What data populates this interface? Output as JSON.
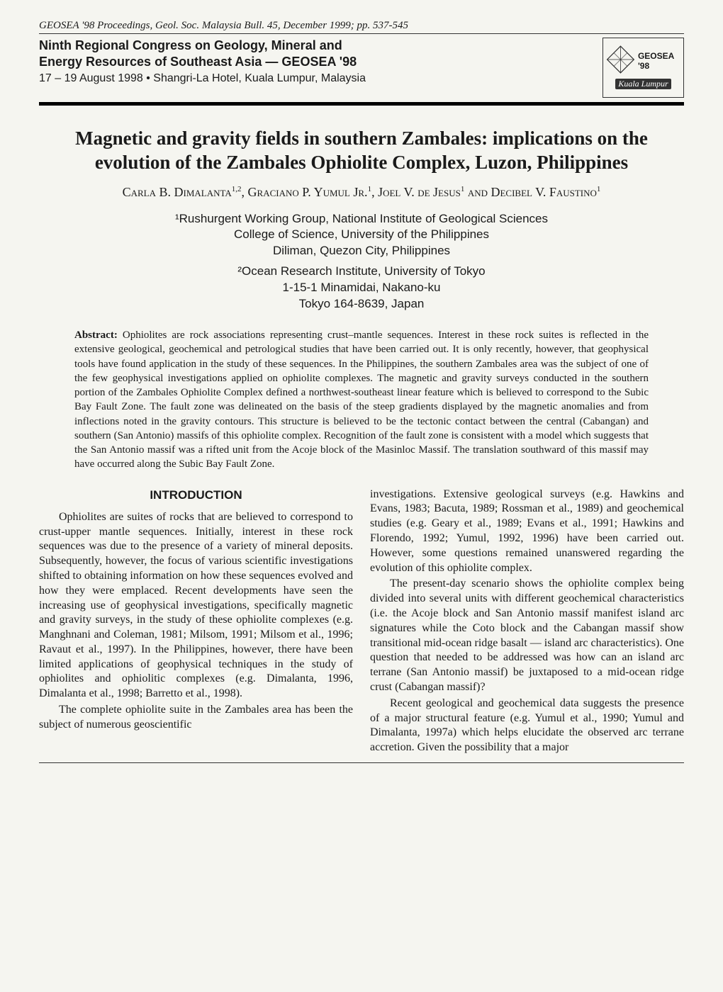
{
  "pageHeader": "GEOSEA '98 Proceedings, Geol. Soc. Malaysia Bull. 45, December 1999; pp. 537-545",
  "congress": {
    "line1": "Ninth Regional Congress on Geology, Mineral and",
    "line2": "Energy Resources of Southeast Asia — GEOSEA '98",
    "dateLine": "17 – 19 August 1998  •  Shangri-La Hotel, Kuala Lumpur, Malaysia"
  },
  "logo": {
    "label": "GEOSEA '98",
    "city": "Kuala Lumpur"
  },
  "title": "Magnetic and gravity fields in southern Zambales: implications on the evolution of the Zambales Ophiolite Complex, Luzon, Philippines",
  "authorsHtml": "Carla B. Dimalanta<span class='sup'>1,2</span>, Graciano P. Yumul Jr.<span class='sup'>1</span>, Joel V. de Jesus<span class='sup'>1</span> and Decibel V. Faustino<span class='sup'>1</span>",
  "affil1": {
    "l1": "¹Rushurgent Working Group, National Institute of Geological Sciences",
    "l2": "College of Science, University of the Philippines",
    "l3": "Diliman, Quezon City, Philippines"
  },
  "affil2": {
    "l1": "²Ocean Research Institute, University of Tokyo",
    "l2": "1-15-1 Minamidai, Nakano-ku",
    "l3": "Tokyo 164-8639, Japan"
  },
  "abstractLabel": "Abstract:",
  "abstractBody": "Ophiolites are rock associations representing crust–mantle sequences. Interest in these rock suites is reflected in the extensive geological, geochemical and petrological studies that have been carried out. It is only recently, however, that geophysical tools have found application in the study of these sequences. In the Philippines, the southern Zambales area was the subject of one of the few geophysical investigations applied on ophiolite complexes. The magnetic and gravity surveys conducted in the southern portion of the Zambales Ophiolite Complex defined a northwest-southeast linear feature which is believed to correspond to the Subic Bay Fault Zone. The fault zone was delineated on the basis of the steep gradients displayed by the magnetic anomalies and from inflections noted in the gravity contours. This structure is believed to be the tectonic contact between the central (Cabangan) and southern (San Antonio) massifs of this ophiolite complex. Recognition of the fault zone is consistent with a model which suggests that the San Antonio massif was a rifted unit from the Acoje block of the Masinloc Massif. The translation southward of this massif may have occurred along the Subic Bay Fault Zone.",
  "introHeading": "INTRODUCTION",
  "col1p1": "Ophiolites are suites of rocks that are believed to correspond to crust-upper mantle sequences. Initially, interest in these rock sequences was due to the presence of a variety of mineral deposits. Subsequently, however, the focus of various scientific investigations shifted to obtaining information on how these sequences evolved and how they were emplaced. Recent developments have seen the increasing use of geophysical investigations, specifically magnetic and gravity surveys, in the study of these ophiolite complexes (e.g. Manghnani and Coleman, 1981; Milsom, 1991; Milsom et al., 1996; Ravaut et al., 1997). In the Philippines, however, there have been limited applications of geophysical techniques in the study of ophiolites and ophiolitic complexes (e.g. Dimalanta, 1996, Dimalanta et al., 1998; Barretto et al., 1998).",
  "col1p2": "The complete ophiolite suite in the Zambales area has been the subject of numerous geoscientific",
  "col2p1": "investigations. Extensive geological surveys (e.g. Hawkins and Evans, 1983; Bacuta, 1989; Rossman et al., 1989) and geochemical studies (e.g. Geary et al., 1989; Evans et al., 1991; Hawkins and Florendo, 1992; Yumul, 1992, 1996) have been carried out. However, some questions remained unanswered regarding the evolution of this ophiolite complex.",
  "col2p2": "The present-day scenario shows the ophiolite complex being divided into several units with different geochemical characteristics (i.e. the Acoje block and San Antonio massif manifest island arc signatures while the Coto block and the Cabangan massif show transitional mid-ocean ridge basalt — island arc characteristics). One question that needed to be addressed was how can an island arc terrane (San Antonio massif) be juxtaposed to a mid-ocean ridge crust (Cabangan massif)?",
  "col2p3": "Recent geological and geochemical data suggests the presence of a major structural feature (e.g. Yumul et al., 1990; Yumul and Dimalanta, 1997a) which helps elucidate the observed arc terrane accretion. Given the possibility that a major",
  "colors": {
    "background": "#f5f5f0",
    "text": "#1a1a1a",
    "rule": "#333333"
  },
  "typography": {
    "bodyFont": "Georgia/Times",
    "sansFont": "Arial/Helvetica",
    "titleSize": 27,
    "bodySize": 16,
    "abstractSize": 15
  }
}
